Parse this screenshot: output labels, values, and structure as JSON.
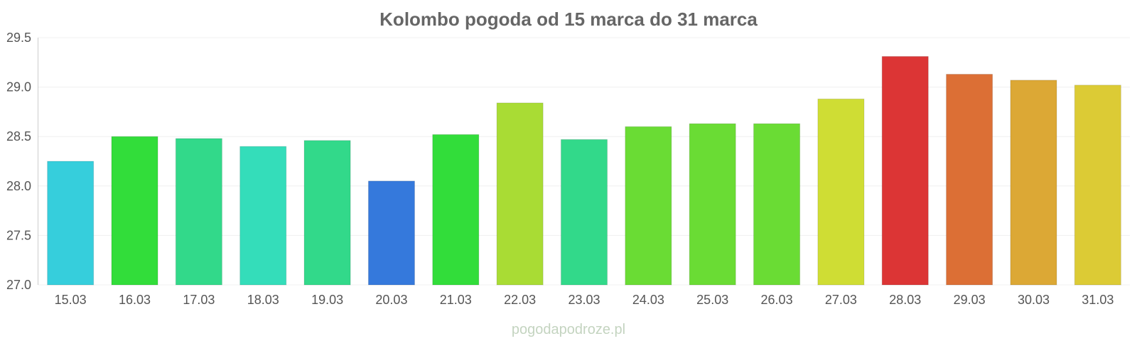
{
  "chart_data": {
    "type": "bar",
    "title": "Kolombo pogoda od 15 marca do 31 marca",
    "xlabel": "",
    "ylabel": "",
    "ylim": [
      27.0,
      29.5
    ],
    "yticks": [
      "27.0",
      "27.5",
      "28.0",
      "28.5",
      "29.0",
      "29.5"
    ],
    "grid": true,
    "legend": "none",
    "categories": [
      "15.03",
      "16.03",
      "17.03",
      "18.03",
      "19.03",
      "20.03",
      "21.03",
      "22.03",
      "23.03",
      "24.03",
      "25.03",
      "26.03",
      "27.03",
      "28.03",
      "29.03",
      "30.03",
      "31.03"
    ],
    "values": [
      28.25,
      28.5,
      28.48,
      28.4,
      28.46,
      28.05,
      28.52,
      28.84,
      28.47,
      28.6,
      28.63,
      28.63,
      28.88,
      29.31,
      29.13,
      29.07,
      29.02
    ],
    "colors": [
      "#36cedc",
      "#32dd3a",
      "#32d98a",
      "#34ddba",
      "#32d98a",
      "#3579dc",
      "#32dd3a",
      "#a9dc34",
      "#32d98a",
      "#6adc34",
      "#6adc34",
      "#6adc34",
      "#cfdd34",
      "#dc3535",
      "#dc6f35",
      "#dca835",
      "#dccb35"
    ]
  },
  "watermark": "pogodapodroze.pl"
}
